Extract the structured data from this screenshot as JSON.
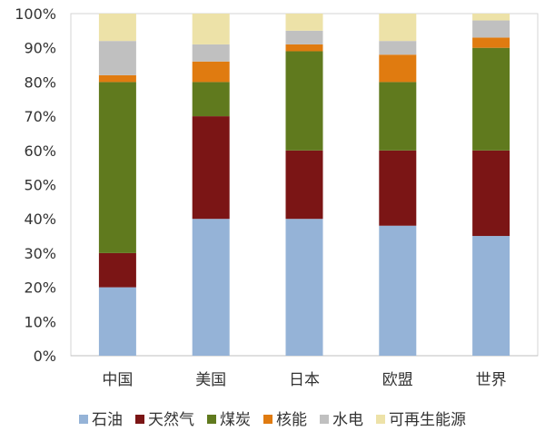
{
  "chart_data": {
    "type": "bar",
    "stacked": true,
    "categories": [
      "中国",
      "美国",
      "日本",
      "欧盟",
      "世界"
    ],
    "series": [
      {
        "name": "石油",
        "color": "#95b3d7",
        "values": [
          20,
          40,
          40,
          38,
          35
        ]
      },
      {
        "name": "天然气",
        "color": "#7b1515",
        "values": [
          10,
          30,
          20,
          22,
          25
        ]
      },
      {
        "name": "煤炭",
        "color": "#607a1e",
        "values": [
          50,
          10,
          29,
          20,
          30
        ]
      },
      {
        "name": "核能",
        "color": "#e07b10",
        "values": [
          2,
          6,
          2,
          8,
          3
        ]
      },
      {
        "name": "水电",
        "color": "#c0c0c0",
        "values": [
          10,
          5,
          4,
          4,
          5
        ]
      },
      {
        "name": "可再生能源",
        "color": "#ede2a8",
        "values": [
          8,
          9,
          5,
          8,
          2
        ]
      }
    ],
    "yticks": [
      "0%",
      "10%",
      "20%",
      "30%",
      "40%",
      "50%",
      "60%",
      "70%",
      "80%",
      "90%",
      "100%"
    ],
    "ylim": [
      0,
      100
    ],
    "grid": false,
    "legend_position": "bottom"
  }
}
